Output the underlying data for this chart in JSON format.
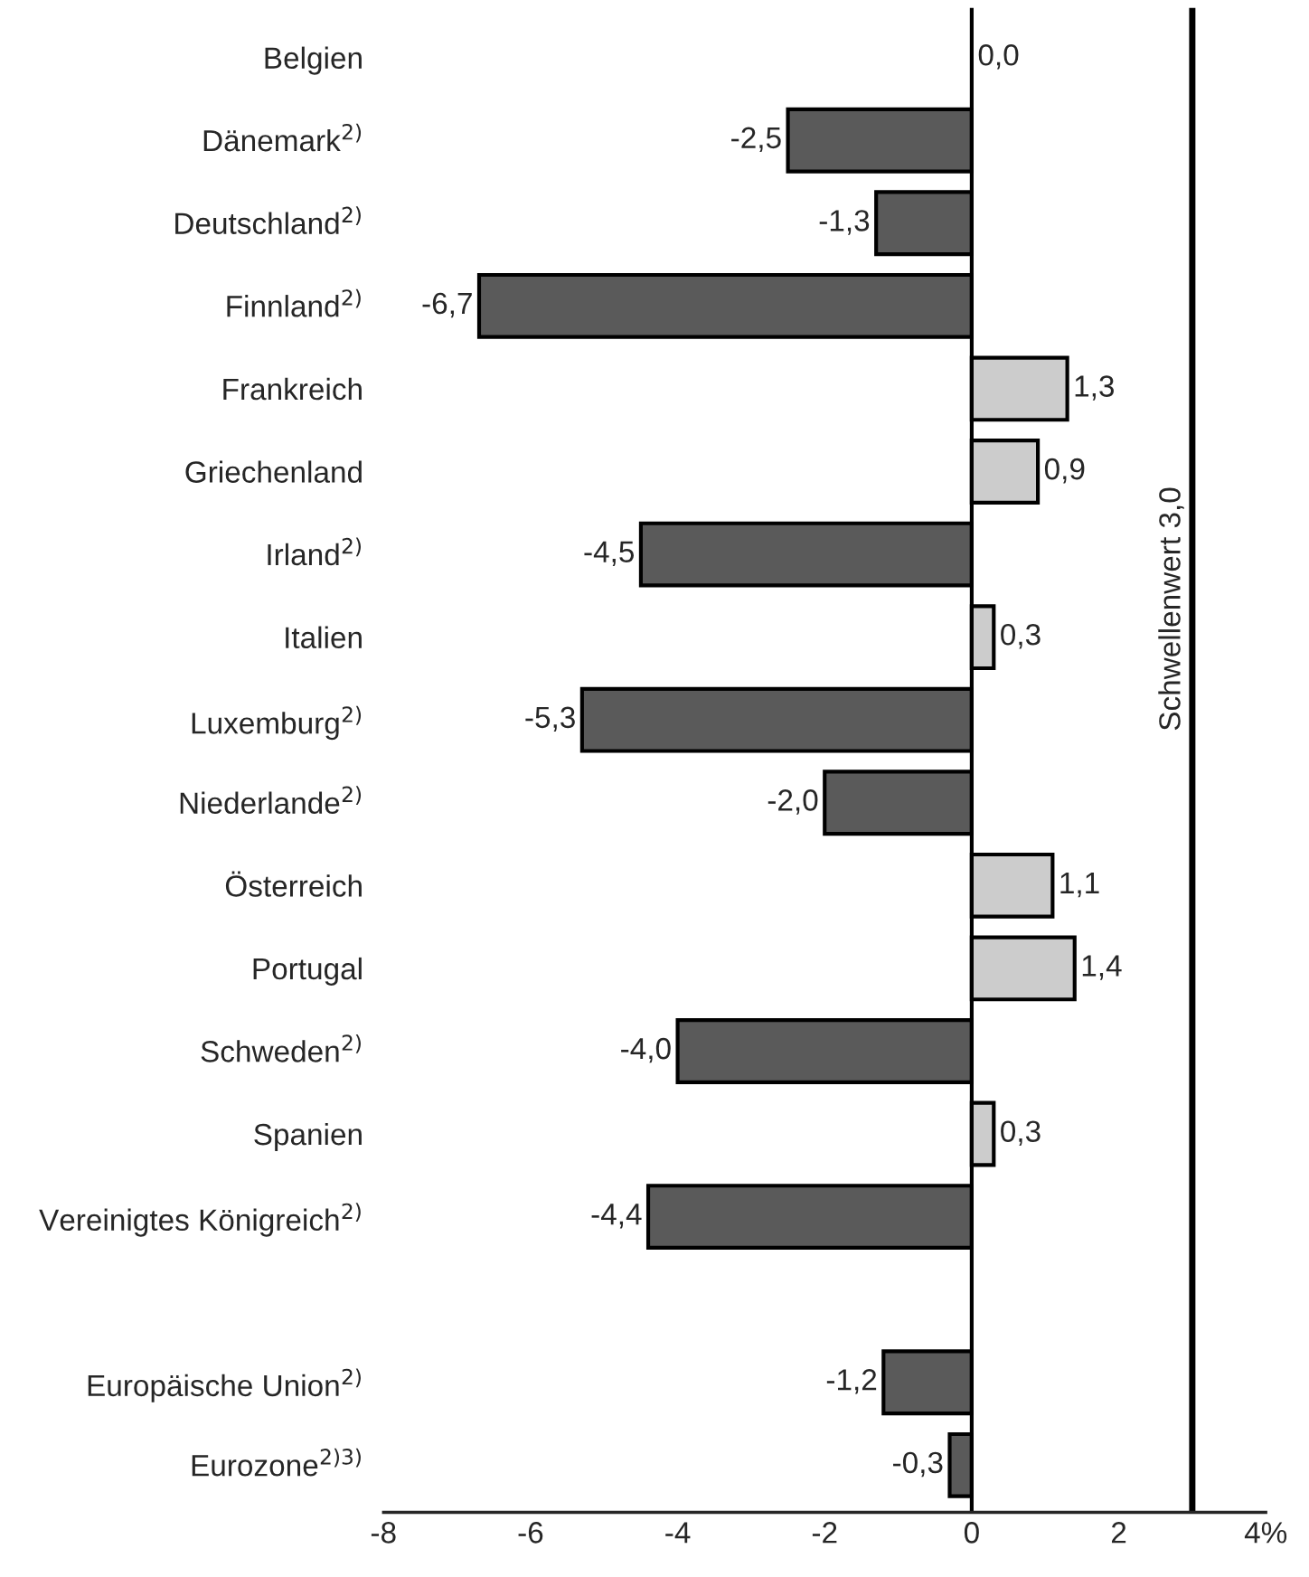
{
  "chart_data": {
    "type": "bar",
    "orientation": "horizontal",
    "categories": [
      "Belgien",
      "Dänemark$^{2)}$",
      "Deutschland$^{2)}$",
      "Finnland$^{2)}$",
      "Frankreich",
      "Griechenland",
      "Irland$^{2)}$",
      "Italien",
      "Luxemburg$^{2)}$",
      "Niederlande$^{2)}$",
      "Österreich",
      "Portugal",
      "Schweden$^{2)}$",
      "Spanien",
      "Vereinigtes Königreich$^{2)}$",
      null,
      "Europäische Union$^{2)}$",
      "Eurozone$^{2)3)}$"
    ],
    "values": [
      0.0,
      -2.5,
      -1.3,
      -6.7,
      1.3,
      0.9,
      -4.5,
      0.3,
      -5.3,
      -2.0,
      1.1,
      1.4,
      -4.0,
      0.3,
      -4.4,
      null,
      -1.2,
      -0.3
    ],
    "value_labels": [
      "0,0",
      "-2,5",
      "-1,3",
      "-6,7",
      "1,3",
      "0,9",
      "-4,5",
      "0,3",
      "-5,3",
      "-2,0",
      "1,1",
      "1,4",
      "-4,0",
      "0,3",
      "-4,4",
      null,
      "-1,2",
      "-0,3"
    ],
    "colors": [
      "#cccccc",
      "#5a5a5a",
      "#5a5a5a",
      "#5a5a5a",
      "#cccccc",
      "#cccccc",
      "#5a5a5a",
      "#cccccc",
      "#5a5a5a",
      "#5a5a5a",
      "#cccccc",
      "#cccccc",
      "#5a5a5a",
      "#cccccc",
      "#5a5a5a",
      null,
      "#5a5a5a",
      "#5a5a5a"
    ],
    "xlim": [
      -8,
      4
    ],
    "xticks": [
      -8,
      -6,
      -4,
      -2,
      0,
      2,
      {
        "value": 4,
        "label": "4%"
      }
    ],
    "ref_lines": [
      {
        "axis": "x",
        "value": 3,
        "label": "Schwellenwert 3,0",
        "color": "#000000"
      }
    ],
    "legend": false
  }
}
